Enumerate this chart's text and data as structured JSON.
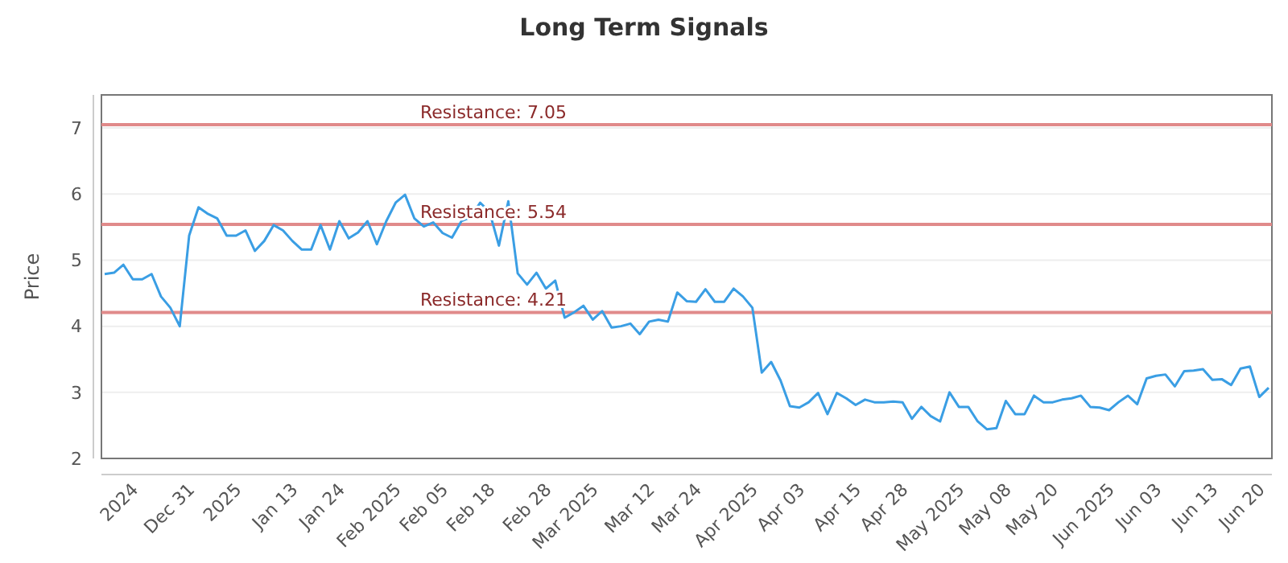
{
  "chart_data": {
    "type": "line",
    "title": "Long Term Signals",
    "ylabel": "Price",
    "categories": [
      null,
      null,
      null,
      "2024",
      null,
      null,
      null,
      null,
      null,
      "Dec 31",
      null,
      null,
      null,
      null,
      "2025",
      null,
      null,
      null,
      null,
      null,
      "Jan 13",
      null,
      null,
      null,
      null,
      "Jan 24",
      null,
      null,
      null,
      null,
      null,
      "Feb 2025",
      null,
      null,
      null,
      null,
      "Feb 05",
      null,
      null,
      null,
      null,
      "Feb 18",
      null,
      null,
      null,
      null,
      null,
      "Feb 28",
      null,
      null,
      null,
      null,
      "Mar 2025",
      null,
      null,
      null,
      null,
      null,
      "Mar 12",
      null,
      null,
      null,
      null,
      "Mar 24",
      null,
      null,
      null,
      null,
      null,
      "Apr 2025",
      null,
      null,
      null,
      null,
      "Apr 03",
      null,
      null,
      null,
      null,
      null,
      "Apr 15",
      null,
      null,
      null,
      null,
      "Apr 28",
      null,
      null,
      null,
      null,
      null,
      "May 2025",
      null,
      null,
      null,
      null,
      "May 08",
      null,
      null,
      null,
      null,
      "May 20",
      null,
      null,
      null,
      null,
      null,
      "Jun 2025",
      null,
      null,
      null,
      null,
      "Jun 03",
      null,
      null,
      null,
      null,
      null,
      "Jun 13",
      null,
      null,
      null,
      null,
      "Jun 20",
      null
    ],
    "series": [
      {
        "color": "#3a9ee4",
        "values": [
          4.79,
          4.81,
          4.93,
          4.71,
          4.71,
          4.79,
          4.45,
          4.28,
          4.0,
          5.37,
          5.8,
          5.7,
          5.63,
          5.37,
          5.37,
          5.45,
          5.14,
          5.29,
          5.53,
          5.45,
          5.29,
          5.16,
          5.16,
          5.53,
          5.16,
          5.59,
          5.33,
          5.42,
          5.59,
          5.24,
          5.59,
          5.87,
          5.99,
          5.63,
          5.51,
          5.57,
          5.41,
          5.34,
          5.59,
          5.65,
          5.87,
          5.73,
          5.22,
          5.89,
          4.8,
          4.63,
          4.81,
          4.57,
          4.69,
          4.13,
          4.21,
          4.31,
          4.1,
          4.23,
          3.98,
          4.0,
          4.04,
          3.88,
          4.07,
          4.1,
          4.07,
          4.51,
          4.38,
          4.37,
          4.56,
          4.37,
          4.37,
          4.57,
          4.45,
          4.28,
          3.3,
          3.46,
          3.18,
          2.79,
          2.77,
          2.85,
          2.99,
          2.67,
          2.99,
          2.91,
          2.81,
          2.89,
          2.85,
          2.85,
          2.86,
          2.85,
          2.6,
          2.78,
          2.64,
          2.56,
          3.0,
          2.78,
          2.78,
          2.56,
          2.44,
          2.46,
          2.87,
          2.67,
          2.67,
          2.95,
          2.85,
          2.85,
          2.89,
          2.91,
          2.95,
          2.78,
          2.77,
          2.73,
          2.85,
          2.95,
          2.82,
          3.21,
          3.25,
          3.27,
          3.09,
          3.32,
          3.33,
          3.35,
          3.19,
          3.2,
          3.11,
          3.36,
          3.39,
          2.93,
          3.07
        ]
      }
    ],
    "ylim": [
      2,
      7.5
    ],
    "yticks": [
      2,
      3,
      4,
      5,
      6,
      7
    ],
    "grid": "y",
    "ref_lines": [
      {
        "axis": "y",
        "value": 7.05,
        "label": "Resistance: 7.05",
        "color": "#e08a8a"
      },
      {
        "axis": "y",
        "value": 5.54,
        "label": "Resistance: 5.54",
        "color": "#e08a8a"
      },
      {
        "axis": "y",
        "value": 4.21,
        "label": "Resistance: 4.21",
        "color": "#e08a8a"
      }
    ]
  }
}
